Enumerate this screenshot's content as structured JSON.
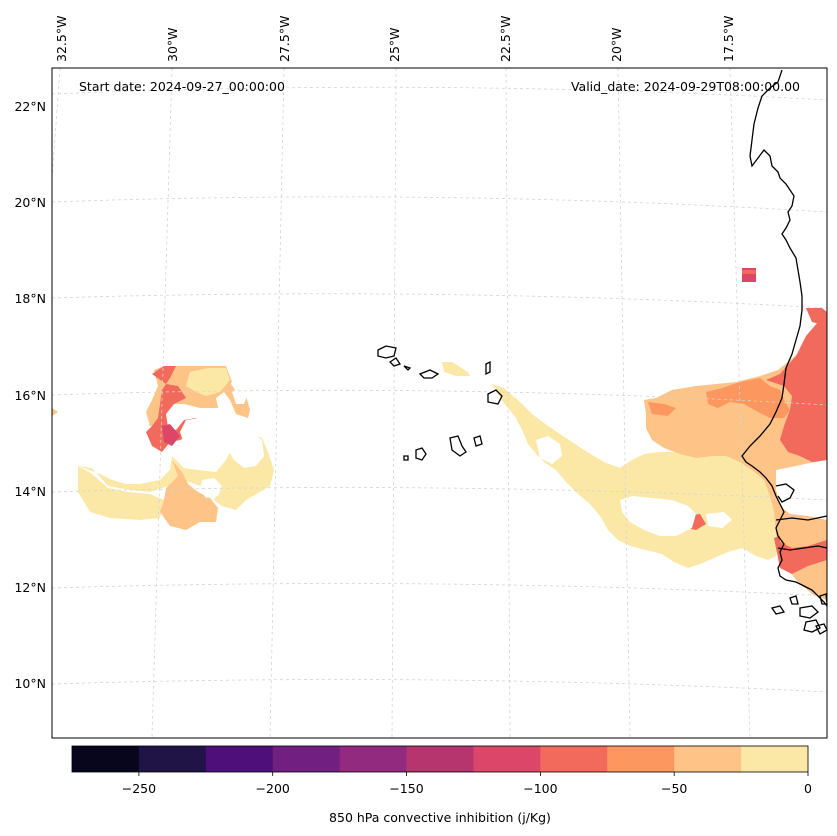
{
  "annotations": {
    "start_date": "Start date: 2024-09-27_00:00:00",
    "valid_date": "Valid_date: 2024-09-29T08:00:00.00"
  },
  "lon_labels": [
    "32.5°W",
    "30°W",
    "27.5°W",
    "25°W",
    "22.5°W",
    "20°W",
    "17.5°W"
  ],
  "lat_labels": [
    "22°N",
    "20°N",
    "18°N",
    "16°N",
    "14°N",
    "12°N",
    "10°N"
  ],
  "colorbar": {
    "label": "850 hPa convective inhibition (j/Kg)",
    "tick_labels": [
      "−250",
      "−200",
      "−150",
      "−100",
      "−50",
      "0"
    ],
    "colors": [
      "#07061c",
      "#201346",
      "#4f0f7a",
      "#711f81",
      "#922b80",
      "#b7356f",
      "#dc4669",
      "#f26a5c",
      "#fc9760",
      "#fec386",
      "#fce8a6"
    ]
  },
  "palette": {
    "coast": "#000000",
    "grid": "#d0d0d0"
  }
}
